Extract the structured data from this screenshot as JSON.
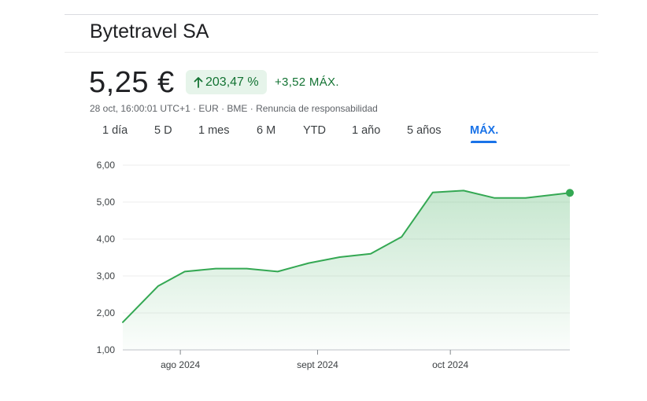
{
  "header": {
    "company": "Bytetravel SA",
    "price": "5,25 €",
    "change_pct": "203,47 %",
    "change_abs": "+3,52 MÁX.",
    "meta": "28 oct, 16:00:01 UTC+1 · EUR · BME · Renuncia de responsabilidad"
  },
  "tabs": [
    {
      "label": "1 día"
    },
    {
      "label": "5 D"
    },
    {
      "label": "1 mes"
    },
    {
      "label": "6 M"
    },
    {
      "label": "YTD"
    },
    {
      "label": "1 año"
    },
    {
      "label": "5 años"
    },
    {
      "label": "MÁX."
    }
  ],
  "active_tab": "MÁX.",
  "colors": {
    "line": "#34a853",
    "positive": "#137333",
    "badge_bg": "#e6f4ea",
    "active_tab": "#1a73e8"
  },
  "icons": {
    "change": "arrow-up-icon"
  },
  "chart_data": {
    "type": "area",
    "y_ticks": [
      "1,00",
      "2,00",
      "3,00",
      "4,00",
      "5,00",
      "6,00"
    ],
    "ylim": [
      1,
      6
    ],
    "x_ticks": [
      {
        "label": "ago 2024",
        "date": "2024-08-01"
      },
      {
        "label": "sept 2024",
        "date": "2024-09-01"
      },
      {
        "label": "oct 2024",
        "date": "2024-10-01"
      }
    ],
    "xlim": [
      "2024-07-19",
      "2024-10-28"
    ],
    "series": [
      {
        "points": [
          {
            "x": "2024-07-19",
            "y": 1.75
          },
          {
            "x": "2024-07-27",
            "y": 2.73
          },
          {
            "x": "2024-08-02",
            "y": 3.12
          },
          {
            "x": "2024-08-09",
            "y": 3.2
          },
          {
            "x": "2024-08-16",
            "y": 3.2
          },
          {
            "x": "2024-08-23",
            "y": 3.12
          },
          {
            "x": "2024-08-30",
            "y": 3.35
          },
          {
            "x": "2024-09-06",
            "y": 3.51
          },
          {
            "x": "2024-09-13",
            "y": 3.6
          },
          {
            "x": "2024-09-20",
            "y": 4.06
          },
          {
            "x": "2024-09-27",
            "y": 5.26
          },
          {
            "x": "2024-10-04",
            "y": 5.31
          },
          {
            "x": "2024-10-11",
            "y": 5.11
          },
          {
            "x": "2024-10-18",
            "y": 5.11
          },
          {
            "x": "2024-10-28",
            "y": 5.25
          }
        ]
      }
    ],
    "grid": true,
    "last_point_marker": true
  }
}
